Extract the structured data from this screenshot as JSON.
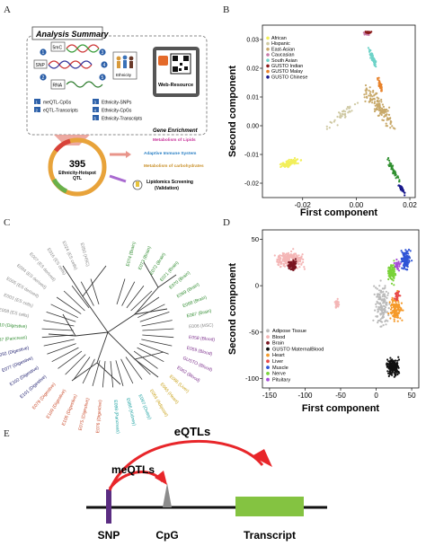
{
  "panels": {
    "a": "A",
    "b": "B",
    "c": "C",
    "d": "D",
    "e": "E"
  },
  "panel_a": {
    "title": "Analysis Summary",
    "smc": "5mC",
    "snp": "SNP",
    "rna": "RNA",
    "ethnicity": "Ethnicity",
    "web_resource": "Web-Resource",
    "legend_items": [
      {
        "num": "1",
        "label": "meQTL-CpGs"
      },
      {
        "num": "2",
        "label": "eQTL-Transcripts"
      },
      {
        "num": "3",
        "label": "Ethnicity-SNPs"
      },
      {
        "num": "4",
        "label": "Ethnicity-CpGs"
      },
      {
        "num": "5",
        "label": "Ethnicity-Transcripts"
      }
    ],
    "hub_number": "395",
    "hub_label_1": "Ethnicity-Hotspot",
    "hub_label_2": "QTL",
    "gene_enrichment_title": "Gene Enrichment",
    "enrichment_items": [
      {
        "label": "Metabolism of Lipids",
        "color": "#c8329a"
      },
      {
        "label": "Adaptive Immune System",
        "color": "#2a7fc4"
      },
      {
        "label": "Metabolism of carbohydrates",
        "color": "#c9902a"
      }
    ],
    "lipidomics_1": "Lipidomics Screening",
    "lipidomics_2": "(Validation)"
  },
  "chart_data": [
    {
      "type": "scatter",
      "panel": "B",
      "xlabel": "First component",
      "ylabel": "Second component",
      "xlim": [
        -0.035,
        0.022
      ],
      "ylim": [
        -0.025,
        0.035
      ],
      "xticks": [
        "-0.02",
        "0.00",
        "0.02"
      ],
      "yticks": [
        "-0.02",
        "-0.01",
        "0.00",
        "0.01",
        "0.02",
        "0.03"
      ],
      "legend_position": "top-left",
      "series": [
        {
          "name": "African",
          "color": "#f2ef5a",
          "center": [
            -0.025,
            -0.013
          ]
        },
        {
          "name": "Hispanic",
          "color": "#cfc9a3",
          "center": [
            -0.005,
            0.004
          ]
        },
        {
          "name": "East-Asian",
          "color": "#c8a96a",
          "center": [
            0.008,
            0.007
          ]
        },
        {
          "name": "Caucasian",
          "color": "#c77aa8",
          "center": [
            0.004,
            0.032
          ]
        },
        {
          "name": "South Asian",
          "color": "#6ed3c8",
          "center": [
            0.006,
            0.024
          ]
        },
        {
          "name": "GUSTO Indian",
          "color": "#8b1a1a",
          "center": [
            0.0045,
            0.0325
          ]
        },
        {
          "name": "GUSTO Malay",
          "color": "#e8822a",
          "center": [
            0.009,
            0.014
          ]
        },
        {
          "name": "GUSTO Chinese",
          "color": "#1a1a8c",
          "center": [
            0.017,
            -0.022
          ]
        }
      ]
    },
    {
      "type": "scatter",
      "panel": "D",
      "xlabel": "First component",
      "ylabel": "Second component",
      "xlim": [
        -160,
        60
      ],
      "ylim": [
        -110,
        60
      ],
      "xticks": [
        "-150",
        "-100",
        "-50",
        "0",
        "50"
      ],
      "yticks": [
        "-100",
        "-50",
        "0",
        "50"
      ],
      "legend_position": "bottom-left",
      "series": [
        {
          "name": "Adipose Tissue",
          "color": "#bbbbbb"
        },
        {
          "name": "Blood",
          "color": "#f4b6b6"
        },
        {
          "name": "Brain",
          "color": "#7a1520"
        },
        {
          "name": "GUSTO MaternalBlood",
          "color": "#111111"
        },
        {
          "name": "Heart",
          "color": "#f59a2a"
        },
        {
          "name": "Liver",
          "color": "#e84a4a"
        },
        {
          "name": "Muscle",
          "color": "#2f54d6"
        },
        {
          "name": "Nerve",
          "color": "#7ad23a"
        },
        {
          "name": "Pituitary",
          "color": "#a64fd6"
        }
      ]
    }
  ],
  "panel_c": {
    "leaves": [
      {
        "label": "E074 (Brain)",
        "color": "#2e8b2e"
      },
      {
        "label": "E073 (Brain)",
        "color": "#2e8b2e"
      },
      {
        "label": "E072 (Brain)",
        "color": "#2e8b2e"
      },
      {
        "label": "E071 (Brain)",
        "color": "#2e8b2e"
      },
      {
        "label": "E070 (Brain)",
        "color": "#2e8b2e"
      },
      {
        "label": "E069 (Brain)",
        "color": "#2e8b2e"
      },
      {
        "label": "E068 (Brain)",
        "color": "#2e8b2e"
      },
      {
        "label": "E067 (Brain)",
        "color": "#2e8b2e"
      },
      {
        "label": "E006 (MSC)",
        "color": "#888888"
      },
      {
        "label": "E058 (Blood)",
        "color": "#7b2d8b"
      },
      {
        "label": "E059 (Blood)",
        "color": "#7b2d8b"
      },
      {
        "label": "GUSTO (Blood)",
        "color": "#7b2d8b"
      },
      {
        "label": "E062 (Blood)",
        "color": "#7b2d8b"
      },
      {
        "label": "E066 (Liver)",
        "color": "#c8a015"
      },
      {
        "label": "E065 (Heart)",
        "color": "#c8a015"
      },
      {
        "label": "E063 (Adipose)",
        "color": "#c8a015"
      },
      {
        "label": "E097 (Ovary)",
        "color": "#1aa0a0"
      },
      {
        "label": "E086 (Kidney)",
        "color": "#1aa0a0"
      },
      {
        "label": "E098 (Pancreas)",
        "color": "#1aa0a0"
      },
      {
        "label": "E076 (Digestive)",
        "color": "#c94a2a"
      },
      {
        "label": "E075 (Digestive)",
        "color": "#c94a2a"
      },
      {
        "label": "E106 (Digestive)",
        "color": "#c94a2a"
      },
      {
        "label": "E109 (Digestive)",
        "color": "#c94a2a"
      },
      {
        "label": "E079 (Digestive)",
        "color": "#c94a2a"
      },
      {
        "label": "E101 (Digestive)",
        "color": "#1a1a6c"
      },
      {
        "label": "E102 (Digestive)",
        "color": "#1a1a6c"
      },
      {
        "label": "E077 (Digestive)",
        "color": "#1a1a6c"
      },
      {
        "label": "E092 (Digestive)",
        "color": "#1a1a6c"
      },
      {
        "label": "E087 (Pancreas)",
        "color": "#2e8b2e"
      },
      {
        "label": "E110 (Digestive)",
        "color": "#2e8b2e"
      },
      {
        "label": "E008 (ES cells)",
        "color": "#888888"
      },
      {
        "label": "E003 (ES cells)",
        "color": "#888888"
      },
      {
        "label": "E005 (ES derived)",
        "color": "#888888"
      },
      {
        "label": "E004 (ES derived)",
        "color": "#888888"
      },
      {
        "label": "E007 (ES derived)",
        "color": "#888888"
      },
      {
        "label": "E016 (ES cells)",
        "color": "#888888"
      },
      {
        "label": "E024 (ES cells)",
        "color": "#888888"
      },
      {
        "label": "E050 (HSC)",
        "color": "#888888"
      }
    ]
  },
  "panel_e": {
    "eqtls": "eQTLs",
    "meqtls": "meQTLs",
    "snp": "SNP",
    "cpg": "CpG",
    "transcript": "Transcript",
    "colors": {
      "arc": "#e8262a",
      "snp": "#5b2d82",
      "cpg": "#8c8c8c",
      "transcript": "#84c341"
    }
  }
}
